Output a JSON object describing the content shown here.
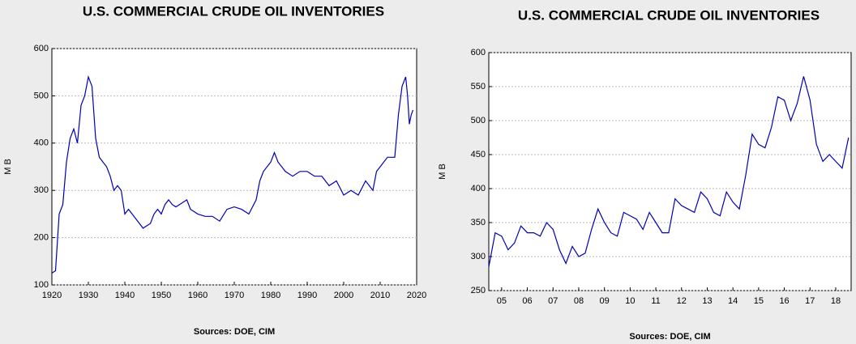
{
  "chart_data": [
    {
      "type": "line",
      "title": "U.S. COMMERCIAL CRUDE OIL INVENTORIES",
      "y_label": "M B",
      "source": "Sources:  DOE, CIM",
      "grid": true,
      "xlim": [
        1920,
        2020
      ],
      "xticks": [
        1920,
        1930,
        1940,
        1950,
        1960,
        1970,
        1980,
        1990,
        2000,
        2010,
        2020
      ],
      "ylim": [
        100,
        600
      ],
      "yticks": [
        100,
        200,
        300,
        400,
        500,
        600
      ],
      "x": [
        1920,
        1921,
        1922,
        1923,
        1924,
        1925,
        1926,
        1927,
        1928,
        1929,
        1930,
        1931,
        1932,
        1933,
        1934,
        1935,
        1936,
        1937,
        1938,
        1939,
        1940,
        1941,
        1942,
        1943,
        1944,
        1945,
        1946,
        1947,
        1948,
        1949,
        1950,
        1951,
        1952,
        1953,
        1954,
        1955,
        1956,
        1957,
        1958,
        1959,
        1960,
        1962,
        1964,
        1966,
        1968,
        1970,
        1972,
        1974,
        1976,
        1977,
        1978,
        1980,
        1981,
        1982,
        1984,
        1986,
        1988,
        1990,
        1992,
        1994,
        1996,
        1998,
        2000,
        2002,
        2004,
        2006,
        2008,
        2009,
        2010,
        2012,
        2014,
        2015,
        2016,
        2017,
        2017.5,
        2018,
        2018.5,
        2019
      ],
      "series": [
        {
          "color": "#0000b4",
          "values": [
            125,
            130,
            250,
            270,
            360,
            410,
            430,
            400,
            480,
            500,
            540,
            520,
            410,
            370,
            360,
            350,
            330,
            300,
            310,
            300,
            250,
            260,
            250,
            240,
            230,
            220,
            225,
            230,
            250,
            260,
            250,
            270,
            280,
            270,
            265,
            270,
            275,
            280,
            260,
            255,
            250,
            245,
            245,
            235,
            260,
            265,
            260,
            250,
            280,
            320,
            340,
            360,
            380,
            360,
            340,
            330,
            340,
            340,
            330,
            330,
            310,
            320,
            290,
            300,
            290,
            320,
            300,
            340,
            350,
            370,
            370,
            460,
            520,
            540,
            500,
            440,
            460,
            470
          ]
        }
      ]
    },
    {
      "type": "line",
      "title": "U.S. COMMERCIAL CRUDE OIL INVENTORIES",
      "y_label": "M B",
      "source": "Sources:  DOE, CIM",
      "grid": true,
      "xlim": [
        2005,
        2019.1
      ],
      "xticks": [
        {
          "value": 2005.5,
          "label": "05"
        },
        {
          "value": 2006.5,
          "label": "06"
        },
        {
          "value": 2007.5,
          "label": "07"
        },
        {
          "value": 2008.5,
          "label": "08"
        },
        {
          "value": 2009.5,
          "label": "09"
        },
        {
          "value": 2010.5,
          "label": "10"
        },
        {
          "value": 2011.5,
          "label": "11"
        },
        {
          "value": 2012.5,
          "label": "12"
        },
        {
          "value": 2013.5,
          "label": "13"
        },
        {
          "value": 2014.5,
          "label": "14"
        },
        {
          "value": 2015.5,
          "label": "15"
        },
        {
          "value": 2016.5,
          "label": "16"
        },
        {
          "value": 2017.5,
          "label": "17"
        },
        {
          "value": 2018.5,
          "label": "18"
        }
      ],
      "ylim": [
        250,
        600
      ],
      "yticks": [
        250,
        300,
        350,
        400,
        450,
        500,
        550,
        600
      ],
      "x": [
        2005,
        2005.25,
        2005.5,
        2005.75,
        2006,
        2006.25,
        2006.5,
        2006.75,
        2007,
        2007.25,
        2007.5,
        2007.75,
        2008,
        2008.25,
        2008.5,
        2008.75,
        2009,
        2009.25,
        2009.5,
        2009.75,
        2010,
        2010.25,
        2010.5,
        2010.75,
        2011,
        2011.25,
        2011.5,
        2011.75,
        2012,
        2012.25,
        2012.5,
        2012.75,
        2013,
        2013.25,
        2013.5,
        2013.75,
        2014,
        2014.25,
        2014.5,
        2014.75,
        2015,
        2015.25,
        2015.5,
        2015.75,
        2016,
        2016.25,
        2016.5,
        2016.75,
        2017,
        2017.25,
        2017.5,
        2017.75,
        2018,
        2018.25,
        2018.5,
        2018.75,
        2019
      ],
      "series": [
        {
          "color": "#0000b4",
          "values": [
            285,
            335,
            330,
            310,
            320,
            345,
            335,
            335,
            330,
            350,
            340,
            310,
            290,
            315,
            300,
            305,
            340,
            370,
            350,
            335,
            330,
            365,
            360,
            355,
            340,
            365,
            350,
            335,
            335,
            385,
            375,
            370,
            365,
            395,
            385,
            365,
            360,
            395,
            380,
            370,
            420,
            480,
            465,
            460,
            490,
            535,
            530,
            500,
            525,
            565,
            530,
            465,
            440,
            450,
            440,
            430,
            475
          ]
        }
      ]
    }
  ]
}
